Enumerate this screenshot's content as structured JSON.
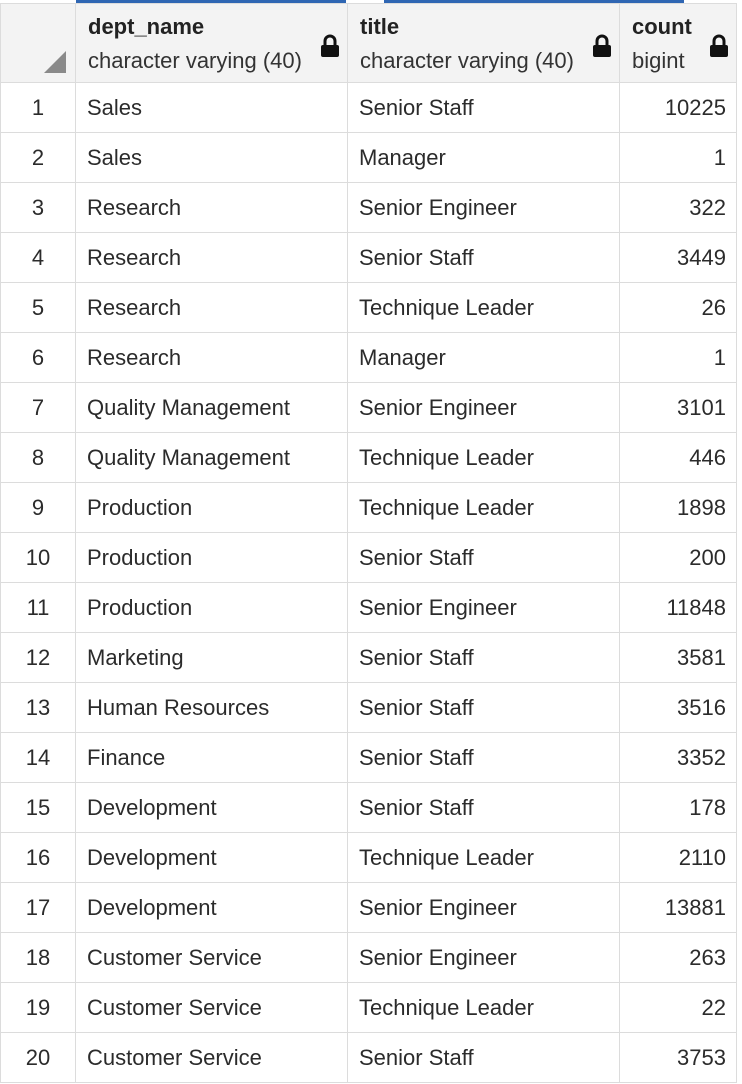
{
  "columns": [
    {
      "name": "dept_name",
      "type": "character varying (40)",
      "icon": "lock-icon"
    },
    {
      "name": "title",
      "type": "character varying (40)",
      "icon": "lock-icon"
    },
    {
      "name": "count",
      "type": "bigint",
      "icon": "lock-icon"
    }
  ],
  "rows": [
    {
      "n": "1",
      "dept_name": "Sales",
      "title": "Senior Staff",
      "count": "10225"
    },
    {
      "n": "2",
      "dept_name": "Sales",
      "title": "Manager",
      "count": "1"
    },
    {
      "n": "3",
      "dept_name": "Research",
      "title": "Senior Engineer",
      "count": "322"
    },
    {
      "n": "4",
      "dept_name": "Research",
      "title": "Senior Staff",
      "count": "3449"
    },
    {
      "n": "5",
      "dept_name": "Research",
      "title": "Technique Leader",
      "count": "26"
    },
    {
      "n": "6",
      "dept_name": "Research",
      "title": "Manager",
      "count": "1"
    },
    {
      "n": "7",
      "dept_name": "Quality Management",
      "title": "Senior Engineer",
      "count": "3101"
    },
    {
      "n": "8",
      "dept_name": "Quality Management",
      "title": "Technique Leader",
      "count": "446"
    },
    {
      "n": "9",
      "dept_name": "Production",
      "title": "Technique Leader",
      "count": "1898"
    },
    {
      "n": "10",
      "dept_name": "Production",
      "title": "Senior Staff",
      "count": "200"
    },
    {
      "n": "11",
      "dept_name": "Production",
      "title": "Senior Engineer",
      "count": "11848"
    },
    {
      "n": "12",
      "dept_name": "Marketing",
      "title": "Senior Staff",
      "count": "3581"
    },
    {
      "n": "13",
      "dept_name": "Human Resources",
      "title": "Senior Staff",
      "count": "3516"
    },
    {
      "n": "14",
      "dept_name": "Finance",
      "title": "Senior Staff",
      "count": "3352"
    },
    {
      "n": "15",
      "dept_name": "Development",
      "title": "Senior Staff",
      "count": "178"
    },
    {
      "n": "16",
      "dept_name": "Development",
      "title": "Technique Leader",
      "count": "2110"
    },
    {
      "n": "17",
      "dept_name": "Development",
      "title": "Senior Engineer",
      "count": "13881"
    },
    {
      "n": "18",
      "dept_name": "Customer Service",
      "title": "Senior Engineer",
      "count": "263"
    },
    {
      "n": "19",
      "dept_name": "Customer Service",
      "title": "Technique Leader",
      "count": "22"
    },
    {
      "n": "20",
      "dept_name": "Customer Service",
      "title": "Senior Staff",
      "count": "3753"
    }
  ],
  "colors": {
    "header_bg": "#f3f3f3",
    "grid_line": "#dcdcdc",
    "accent": "#2f66b3"
  }
}
